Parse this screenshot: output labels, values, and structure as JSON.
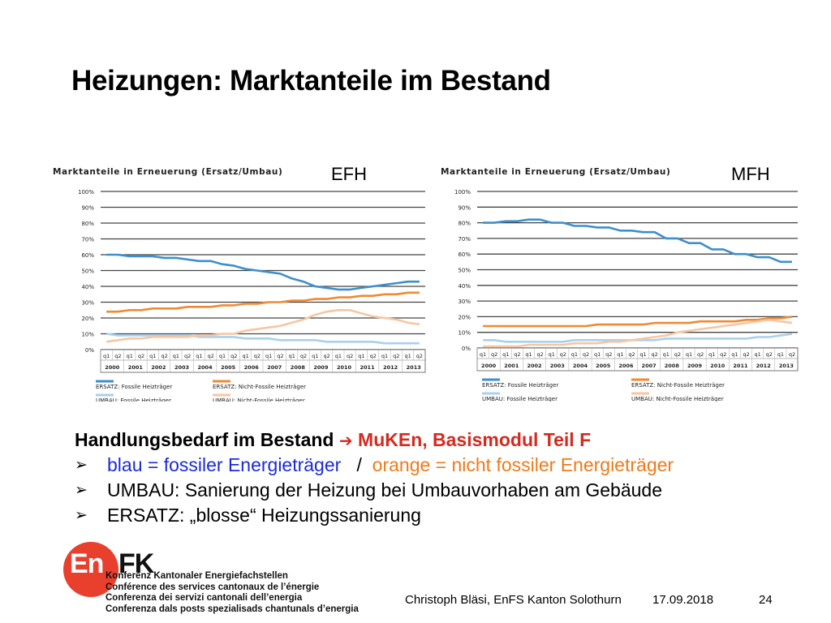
{
  "title": "Heizungen: Marktanteile im Bestand",
  "chart_data": [
    {
      "type": "line",
      "tag": "EFH",
      "title": "Marktanteile in Erneuerung (Ersatz/Umbau)",
      "yticks": [
        "100%",
        "90%",
        "80%",
        "70%",
        "60%",
        "50%",
        "40%",
        "30%",
        "20%",
        "10%",
        "0%"
      ],
      "ylim": [
        0,
        100
      ],
      "x": [
        "2000 q1",
        "2000 q2",
        "2001 q1",
        "2001 q2",
        "2002 q1",
        "2002 q2",
        "2003 q1",
        "2003 q2",
        "2004 q1",
        "2004 q2",
        "2005 q1",
        "2005 q2",
        "2006 q1",
        "2006 q2",
        "2007 q1",
        "2007 q2",
        "2008 q1",
        "2008 q2",
        "2009 q1",
        "2009 q2",
        "2010 q1",
        "2010 q2",
        "2011 q1",
        "2011 q2",
        "2012 q1",
        "2012 q2",
        "2013 q1",
        "2013 q2"
      ],
      "quarter_labels": [
        "q1",
        "q2",
        "q1",
        "q2",
        "q1",
        "q2",
        "q1",
        "q2",
        "q1",
        "q2",
        "q1",
        "q2",
        "q1",
        "q2",
        "q1",
        "q2",
        "q1",
        "q2",
        "q1",
        "q2",
        "q1",
        "q2",
        "q1",
        "q2",
        "q1",
        "q2",
        "q1",
        "q2"
      ],
      "years": [
        "2000",
        "2001",
        "2002",
        "2003",
        "2004",
        "2005",
        "2006",
        "2007",
        "2008",
        "2009",
        "2010",
        "2011",
        "2012",
        "2013"
      ],
      "legend_position": "bottom",
      "grid": true,
      "series": [
        {
          "name": "ERSATZ: Fossile Heizträger",
          "color": "#3d8fcd",
          "values": [
            60,
            60,
            59,
            59,
            59,
            58,
            58,
            57,
            56,
            56,
            54,
            53,
            51,
            50,
            49,
            48,
            45,
            43,
            40,
            39,
            38,
            38,
            39,
            40,
            41,
            42,
            43,
            43
          ]
        },
        {
          "name": "ERSATZ: Nicht-Fossile Heizträger",
          "color": "#ee8a33",
          "values": [
            24,
            24,
            25,
            25,
            26,
            26,
            26,
            27,
            27,
            27,
            28,
            28,
            29,
            29,
            30,
            30,
            31,
            31,
            32,
            32,
            33,
            33,
            34,
            34,
            35,
            35,
            36,
            36
          ]
        },
        {
          "name": "UMBAU: Fossile Heizträger",
          "color": "#a8d1ee",
          "values": [
            10,
            9,
            9,
            9,
            9,
            9,
            9,
            9,
            8,
            8,
            8,
            8,
            7,
            7,
            7,
            6,
            6,
            6,
            6,
            5,
            5,
            5,
            5,
            5,
            4,
            4,
            4,
            4
          ]
        },
        {
          "name": "UMBAU: Nicht-Fossile Heizträger",
          "color": "#f7c6a1",
          "values": [
            5,
            6,
            7,
            7,
            8,
            8,
            8,
            8,
            9,
            9,
            10,
            10,
            12,
            13,
            14,
            15,
            17,
            19,
            22,
            24,
            25,
            25,
            23,
            21,
            20,
            19,
            17,
            16
          ]
        }
      ]
    },
    {
      "type": "line",
      "tag": "MFH",
      "title": "Marktanteile in Erneuerung (Ersatz/Umbau)",
      "yticks": [
        "100%",
        "90%",
        "80%",
        "70%",
        "60%",
        "50%",
        "40%",
        "30%",
        "20%",
        "10%",
        "0%"
      ],
      "ylim": [
        0,
        100
      ],
      "x": [
        "2000 q1",
        "2000 q2",
        "2001 q1",
        "2001 q2",
        "2002 q1",
        "2002 q2",
        "2003 q1",
        "2003 q2",
        "2004 q1",
        "2004 q2",
        "2005 q1",
        "2005 q2",
        "2006 q1",
        "2006 q2",
        "2007 q1",
        "2007 q2",
        "2008 q1",
        "2008 q2",
        "2009 q1",
        "2009 q2",
        "2010 q1",
        "2010 q2",
        "2011 q1",
        "2011 q2",
        "2012 q1",
        "2012 q2",
        "2013 q1",
        "2013 q2"
      ],
      "quarter_labels": [
        "q1",
        "q2",
        "q1",
        "q2",
        "q1",
        "q2",
        "q1",
        "q2",
        "q1",
        "q2",
        "q1",
        "q2",
        "q1",
        "q2",
        "q1",
        "q2",
        "q1",
        "q2",
        "q1",
        "q2",
        "q1",
        "q2",
        "q1",
        "q2",
        "q1",
        "q2",
        "q1",
        "q2"
      ],
      "years": [
        "2000",
        "2001",
        "2002",
        "2003",
        "2004",
        "2005",
        "2006",
        "2007",
        "2008",
        "2009",
        "2010",
        "2011",
        "2012",
        "2013"
      ],
      "legend_position": "bottom",
      "grid": true,
      "series": [
        {
          "name": "ERSATZ: Fossile Heizträger",
          "color": "#3d8fcd",
          "values": [
            80,
            80,
            81,
            81,
            82,
            82,
            80,
            80,
            78,
            78,
            77,
            77,
            75,
            75,
            74,
            74,
            70,
            70,
            67,
            67,
            63,
            63,
            60,
            60,
            58,
            58,
            55,
            55
          ]
        },
        {
          "name": "ERSATZ: Nicht-Fossile Heizträger",
          "color": "#ee8a33",
          "values": [
            14,
            14,
            14,
            14,
            14,
            14,
            14,
            14,
            14,
            14,
            15,
            15,
            15,
            15,
            15,
            16,
            16,
            16,
            16,
            17,
            17,
            17,
            17,
            18,
            18,
            19,
            19,
            20
          ]
        },
        {
          "name": "UMBAU: Fossile Heizträger",
          "color": "#a8d1ee",
          "values": [
            5,
            5,
            4,
            4,
            4,
            4,
            4,
            4,
            5,
            5,
            5,
            5,
            5,
            5,
            5,
            5,
            6,
            6,
            6,
            6,
            6,
            6,
            6,
            6,
            7,
            7,
            8,
            9
          ]
        },
        {
          "name": "UMBAU: Nicht-Fossile Heizträger",
          "color": "#f7c6a1",
          "values": [
            1,
            1,
            1,
            1,
            2,
            2,
            2,
            2,
            3,
            3,
            3,
            4,
            4,
            5,
            6,
            7,
            8,
            10,
            11,
            12,
            13,
            14,
            15,
            16,
            17,
            18,
            17,
            16
          ]
        }
      ]
    }
  ],
  "subheading": {
    "text": "Handlungsbedarf im Bestand",
    "arrow": "➔",
    "highlight": "MuKEn, Basismodul Teil F"
  },
  "bullets": {
    "marker": "➢",
    "b1_blue": "blau = fossiler Energieträger",
    "b1_sep": "/",
    "b1_orange": "orange = nicht fossiler Energieträger",
    "b2": "UMBAU: Sanierung der Heizung bei Umbauvorhaben am Gebäude",
    "b3": "ERSATZ: „blosse“ Heizungssanierung"
  },
  "logo": {
    "en": "En",
    "fk": "FK",
    "lines": [
      "Konferenz Kantonaler Energiefachstellen",
      "Conférence des services cantonaux de l’énergie",
      "Conferenza dei servizi cantonali dell’energia",
      "Conferenza dals posts spezialisads chantunals d’energia"
    ]
  },
  "footer": {
    "author": "Christoph Bläsi, EnFS Kanton Solothurn",
    "date": "17.09.2018",
    "page": "24"
  }
}
